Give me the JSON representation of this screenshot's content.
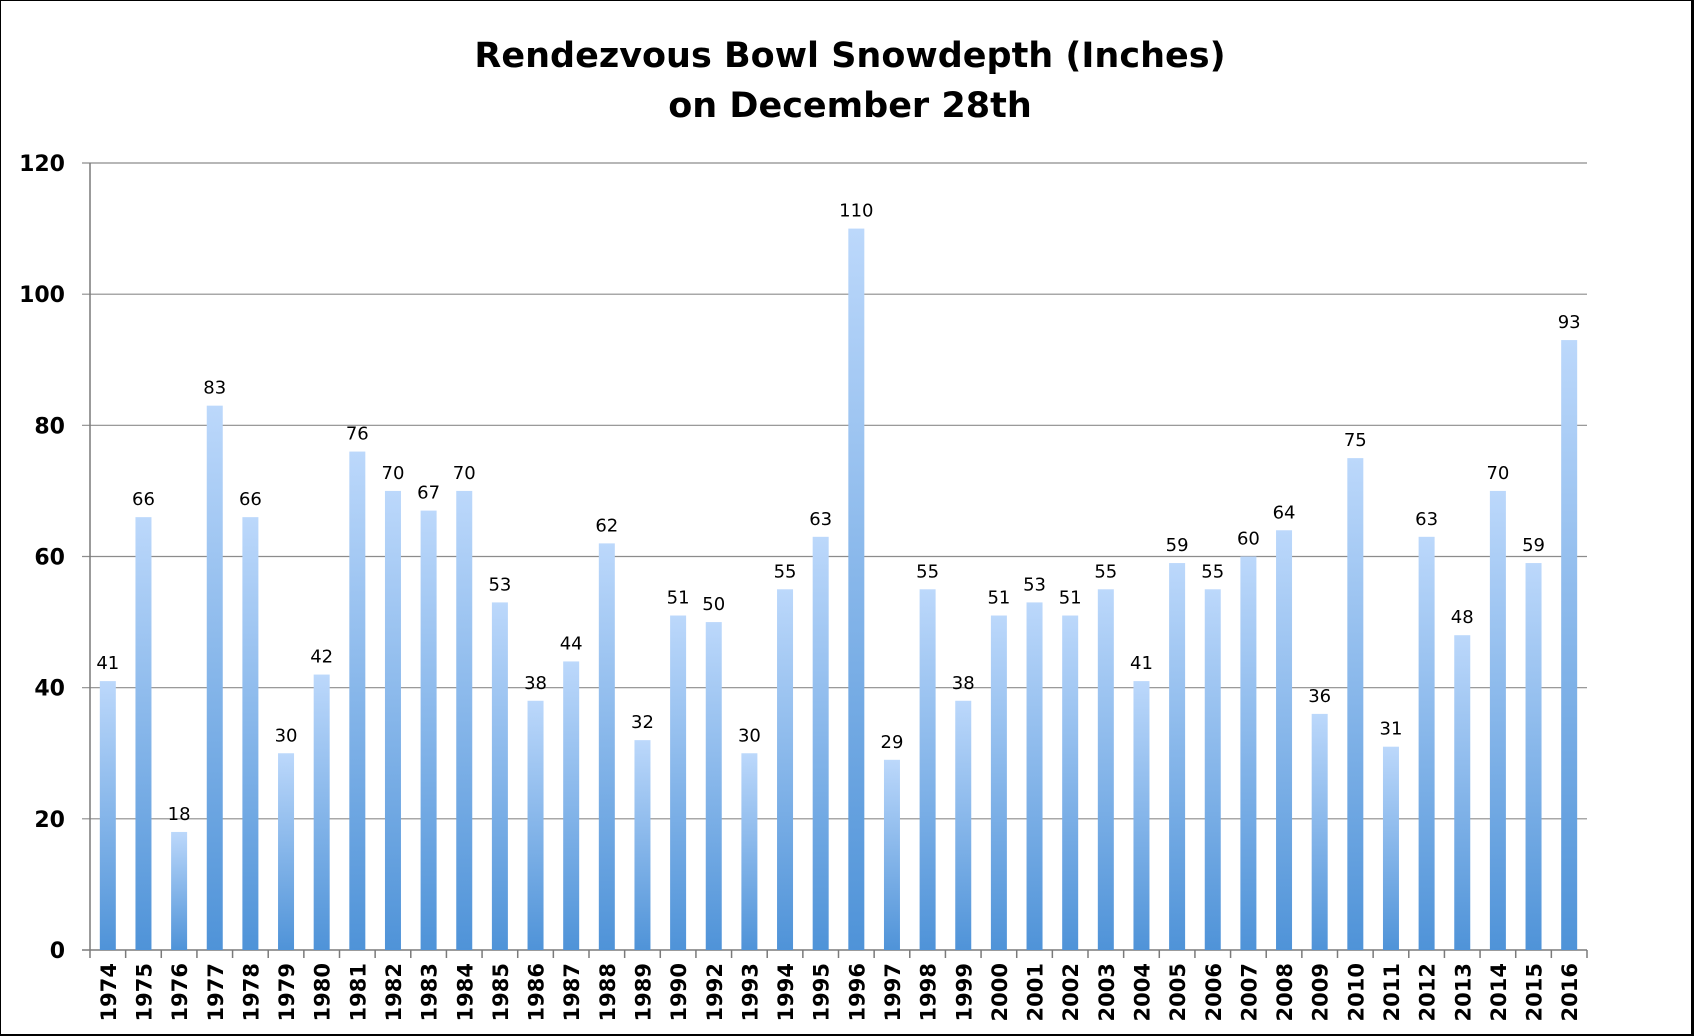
{
  "chart_data": {
    "type": "bar",
    "title_line1": "Rendezvous Bowl Snowdepth (Inches)",
    "title_line2": "on December 28th",
    "xlabel": "",
    "ylabel": "",
    "ylim": [
      0,
      120
    ],
    "yticks": [
      0,
      20,
      40,
      60,
      80,
      100,
      120
    ],
    "grid": true,
    "legend": "none",
    "categories": [
      "1974",
      "1975",
      "1976",
      "1977",
      "1978",
      "1979",
      "1980",
      "1981",
      "1982",
      "1983",
      "1984",
      "1985",
      "1986",
      "1987",
      "1988",
      "1989",
      "1990",
      "1992",
      "1993",
      "1994",
      "1995",
      "1996",
      "1997",
      "1998",
      "1999",
      "2000",
      "2001",
      "2002",
      "2003",
      "2004",
      "2005",
      "2006",
      "2007",
      "2008",
      "2009",
      "2010",
      "2011",
      "2012",
      "2013",
      "2014",
      "2015",
      "2016"
    ],
    "values": [
      41,
      66,
      18,
      83,
      66,
      30,
      42,
      76,
      70,
      67,
      70,
      53,
      38,
      44,
      62,
      32,
      51,
      50,
      30,
      55,
      63,
      110,
      29,
      55,
      38,
      51,
      53,
      51,
      55,
      41,
      59,
      55,
      60,
      64,
      36,
      75,
      31,
      63,
      48,
      70,
      59,
      93
    ],
    "data_labels": [
      "41",
      "66",
      "18",
      "83",
      "66",
      "30",
      "42",
      "76",
      "70",
      "67",
      "70",
      "53",
      "38",
      "44",
      "62",
      "32",
      "51",
      "50",
      "30",
      "55",
      "63",
      "110",
      "29",
      "55",
      "38",
      "51",
      "53",
      "51",
      "55",
      "41",
      "59",
      "55",
      "60",
      "64",
      "36",
      "75",
      "31",
      "63",
      "48",
      "70",
      "59",
      "93"
    ],
    "colors": {
      "background": "#ffffff",
      "frame": "#000000",
      "bar_top": "#bcd8fb",
      "bar_bottom": "#4f93d8",
      "grid": "#8c8c8c",
      "text": "#000000"
    }
  }
}
